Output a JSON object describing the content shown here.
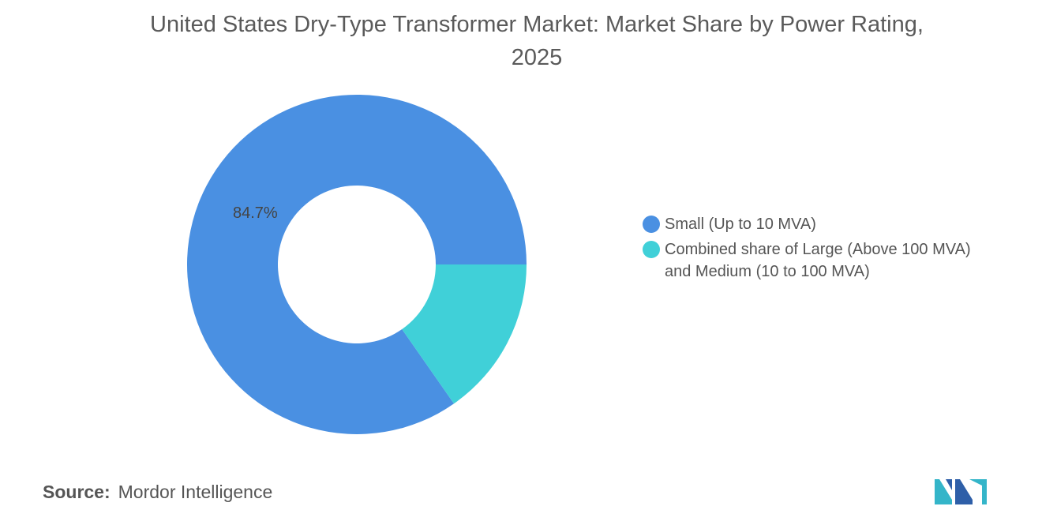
{
  "title_line1": "United States Dry-Type Transformer Market: Market Share by Power Rating,",
  "title_line2": "2025",
  "chart_data": {
    "type": "pie",
    "variant": "donut",
    "title": "United States Dry-Type Transformer Market: Market Share by Power Rating, 2025",
    "series": [
      {
        "name": "Small (Up to 10 MVA)",
        "value": 84.7,
        "label": "84.7%",
        "color": "#4a90e2"
      },
      {
        "name": "Combined share of Large (Above 100 MVA) and Medium (10 to 100 MVA)",
        "value": 15.3,
        "label": "",
        "color": "#40d0d8"
      }
    ],
    "legend_position": "right"
  },
  "source": {
    "label": "Source:",
    "value": "Mordor Intelligence"
  },
  "logo": {
    "colors": [
      "#2e5fa8",
      "#34b5c9"
    ]
  }
}
